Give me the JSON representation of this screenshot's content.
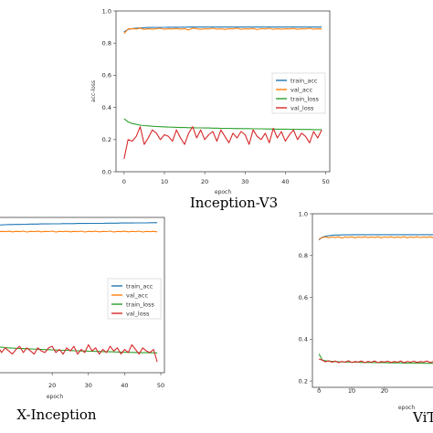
{
  "colors": {
    "train_acc": "#1f77b4",
    "val_acc": "#ff7f0e",
    "train_loss": "#2ca02c",
    "val_loss": "#d62728"
  },
  "chart_data": [
    {
      "type": "line",
      "caption": "Inception-V3",
      "xlabel": "epoch",
      "ylabel": "acc-loss",
      "xlim": [
        -2,
        51
      ],
      "ylim": [
        0,
        1
      ],
      "xticks": [
        0,
        10,
        20,
        30,
        40,
        50
      ],
      "yticks": [
        0.0,
        0.2,
        0.4,
        0.6,
        0.8,
        1.0
      ],
      "legend": "center-right",
      "series": [
        {
          "key": "train_acc",
          "name": "train_acc",
          "values": [
            0.87,
            0.885,
            0.89,
            0.893,
            0.895,
            0.896,
            0.897,
            0.897,
            0.898,
            0.898,
            0.898,
            0.899,
            0.899,
            0.899,
            0.899,
            0.899,
            0.9,
            0.9,
            0.9,
            0.9,
            0.9,
            0.9,
            0.9,
            0.9,
            0.9,
            0.9,
            0.9,
            0.9,
            0.9,
            0.9,
            0.9,
            0.9,
            0.9,
            0.9,
            0.9,
            0.9,
            0.9,
            0.9,
            0.9,
            0.9,
            0.9,
            0.9,
            0.9,
            0.9,
            0.9,
            0.9,
            0.9,
            0.9,
            0.9,
            0.9
          ]
        },
        {
          "key": "val_acc",
          "name": "val_acc",
          "values": [
            0.86,
            0.888,
            0.89,
            0.888,
            0.893,
            0.885,
            0.89,
            0.887,
            0.89,
            0.892,
            0.886,
            0.89,
            0.888,
            0.891,
            0.887,
            0.89,
            0.882,
            0.893,
            0.89,
            0.886,
            0.89,
            0.888,
            0.892,
            0.887,
            0.89,
            0.885,
            0.89,
            0.888,
            0.893,
            0.886,
            0.89,
            0.888,
            0.891,
            0.884,
            0.89,
            0.888,
            0.892,
            0.886,
            0.89,
            0.887,
            0.89,
            0.888,
            0.891,
            0.886,
            0.89,
            0.888,
            0.892,
            0.887,
            0.89,
            0.888
          ]
        },
        {
          "key": "train_loss",
          "name": "train_loss",
          "values": [
            0.33,
            0.31,
            0.3,
            0.295,
            0.29,
            0.287,
            0.285,
            0.283,
            0.281,
            0.28,
            0.279,
            0.278,
            0.277,
            0.276,
            0.275,
            0.275,
            0.274,
            0.274,
            0.273,
            0.273,
            0.272,
            0.272,
            0.271,
            0.271,
            0.27,
            0.27,
            0.27,
            0.269,
            0.269,
            0.268,
            0.268,
            0.268,
            0.267,
            0.267,
            0.267,
            0.266,
            0.266,
            0.266,
            0.265,
            0.265,
            0.265,
            0.264,
            0.264,
            0.264,
            0.263,
            0.263,
            0.263,
            0.262,
            0.262,
            0.262
          ]
        },
        {
          "key": "val_loss",
          "name": "val_loss",
          "values": [
            0.08,
            0.2,
            0.19,
            0.22,
            0.28,
            0.17,
            0.21,
            0.26,
            0.24,
            0.2,
            0.23,
            0.22,
            0.19,
            0.26,
            0.21,
            0.17,
            0.24,
            0.28,
            0.21,
            0.26,
            0.2,
            0.23,
            0.25,
            0.19,
            0.26,
            0.22,
            0.18,
            0.24,
            0.21,
            0.25,
            0.23,
            0.17,
            0.26,
            0.22,
            0.2,
            0.24,
            0.18,
            0.27,
            0.21,
            0.25,
            0.19,
            0.23,
            0.26,
            0.2,
            0.24,
            0.22,
            0.18,
            0.25,
            0.21,
            0.26
          ]
        }
      ]
    },
    {
      "type": "line",
      "caption": "X-Inception",
      "xlabel": "epoch",
      "ylabel": "",
      "xlim": [
        -2,
        51
      ],
      "ylim": [
        0,
        1
      ],
      "xticks": [
        20,
        30,
        40,
        50
      ],
      "yticks": [],
      "legend": "center-right",
      "series": [
        {
          "key": "train_acc",
          "name": "train_acc",
          "values": [
            0.93,
            0.94,
            0.945,
            0.948,
            0.95,
            0.951,
            0.952,
            0.953,
            0.954,
            0.954,
            0.955,
            0.955,
            0.956,
            0.956,
            0.957,
            0.957,
            0.957,
            0.958,
            0.958,
            0.958,
            0.959,
            0.959,
            0.959,
            0.96,
            0.96,
            0.96,
            0.96,
            0.961,
            0.961,
            0.961,
            0.961,
            0.962,
            0.962,
            0.962,
            0.962,
            0.963,
            0.963,
            0.963,
            0.963,
            0.964,
            0.964,
            0.964,
            0.964,
            0.965,
            0.965,
            0.965,
            0.965,
            0.966,
            0.966,
            0.966
          ]
        },
        {
          "key": "val_acc",
          "name": "val_acc",
          "values": [
            0.915,
            0.905,
            0.91,
            0.907,
            0.912,
            0.906,
            0.91,
            0.908,
            0.911,
            0.907,
            0.91,
            0.908,
            0.912,
            0.906,
            0.91,
            0.908,
            0.911,
            0.907,
            0.91,
            0.909,
            0.912,
            0.906,
            0.91,
            0.908,
            0.911,
            0.907,
            0.91,
            0.908,
            0.912,
            0.906,
            0.91,
            0.908,
            0.911,
            0.907,
            0.91,
            0.909,
            0.912,
            0.906,
            0.91,
            0.908,
            0.911,
            0.907,
            0.91,
            0.908,
            0.912,
            0.906,
            0.91,
            0.908,
            0.91,
            0.907
          ]
        },
        {
          "key": "train_loss",
          "name": "train_loss",
          "values": [
            0.18,
            0.177,
            0.174,
            0.171,
            0.168,
            0.166,
            0.164,
            0.162,
            0.16,
            0.158,
            0.157,
            0.156,
            0.155,
            0.154,
            0.153,
            0.152,
            0.151,
            0.15,
            0.149,
            0.148,
            0.147,
            0.146,
            0.145,
            0.144,
            0.144,
            0.143,
            0.142,
            0.141,
            0.14,
            0.14,
            0.139,
            0.138,
            0.137,
            0.137,
            0.136,
            0.135,
            0.135,
            0.134,
            0.133,
            0.133,
            0.132,
            0.131,
            0.131,
            0.13,
            0.13,
            0.129,
            0.129,
            0.128,
            0.128,
            0.127
          ]
        },
        {
          "key": "val_loss",
          "name": "val_loss",
          "values": [
            0.17,
            0.14,
            0.16,
            0.12,
            0.15,
            0.17,
            0.13,
            0.16,
            0.14,
            0.12,
            0.15,
            0.17,
            0.13,
            0.16,
            0.14,
            0.12,
            0.16,
            0.14,
            0.13,
            0.16,
            0.17,
            0.13,
            0.15,
            0.12,
            0.16,
            0.14,
            0.17,
            0.12,
            0.15,
            0.13,
            0.18,
            0.14,
            0.16,
            0.12,
            0.15,
            0.13,
            0.17,
            0.14,
            0.16,
            0.12,
            0.15,
            0.13,
            0.18,
            0.15,
            0.12,
            0.16,
            0.14,
            0.13,
            0.15,
            0.07
          ]
        }
      ]
    },
    {
      "type": "line",
      "caption": "ViT",
      "xlabel": "epoch",
      "ylabel": "",
      "xlim": [
        -2,
        51
      ],
      "ylim": [
        0.17,
        1.0
      ],
      "xticks": [
        0,
        10,
        20
      ],
      "yticks": [
        0.2,
        0.4,
        0.6,
        0.8,
        1.0
      ],
      "legend": "center-right",
      "series": [
        {
          "key": "train_acc",
          "name": "train_acc",
          "values": [
            0.875,
            0.888,
            0.892,
            0.895,
            0.897,
            0.898,
            0.898,
            0.899,
            0.899,
            0.899,
            0.9,
            0.9,
            0.9,
            0.9,
            0.9,
            0.9,
            0.9,
            0.9,
            0.9,
            0.9,
            0.9,
            0.9,
            0.9,
            0.9,
            0.9,
            0.9,
            0.9,
            0.9,
            0.9,
            0.9,
            0.9,
            0.9,
            0.9,
            0.9,
            0.9,
            0.9,
            0.9,
            0.9,
            0.9,
            0.9,
            0.9,
            0.9,
            0.9,
            0.9,
            0.9,
            0.9,
            0.9,
            0.9,
            0.9,
            0.9
          ]
        },
        {
          "key": "val_acc",
          "name": "val_acc",
          "values": [
            0.88,
            0.886,
            0.889,
            0.885,
            0.889,
            0.887,
            0.89,
            0.884,
            0.889,
            0.887,
            0.89,
            0.885,
            0.889,
            0.887,
            0.89,
            0.886,
            0.889,
            0.887,
            0.89,
            0.885,
            0.889,
            0.887,
            0.89,
            0.886,
            0.889,
            0.887,
            0.89,
            0.885,
            0.889,
            0.887,
            0.89,
            0.886,
            0.889,
            0.887,
            0.89,
            0.885,
            0.889,
            0.887,
            0.89,
            0.886,
            0.889,
            0.887,
            0.89,
            0.885,
            0.889,
            0.887,
            0.89,
            0.886,
            0.889,
            0.887
          ]
        },
        {
          "key": "train_loss",
          "name": "train_loss",
          "values": [
            0.33,
            0.3,
            0.297,
            0.295,
            0.294,
            0.293,
            0.292,
            0.292,
            0.291,
            0.291,
            0.29,
            0.29,
            0.29,
            0.289,
            0.289,
            0.289,
            0.289,
            0.288,
            0.288,
            0.288,
            0.288,
            0.287,
            0.287,
            0.287,
            0.287,
            0.287,
            0.286,
            0.286,
            0.286,
            0.286,
            0.286,
            0.286,
            0.285,
            0.285,
            0.285,
            0.285,
            0.285,
            0.285,
            0.285,
            0.284,
            0.284,
            0.284,
            0.284,
            0.284,
            0.284,
            0.284,
            0.283,
            0.283,
            0.283,
            0.283
          ]
        },
        {
          "key": "val_loss",
          "name": "val_loss",
          "values": [
            0.305,
            0.3,
            0.292,
            0.297,
            0.29,
            0.296,
            0.288,
            0.294,
            0.29,
            0.297,
            0.289,
            0.293,
            0.291,
            0.296,
            0.288,
            0.294,
            0.29,
            0.296,
            0.288,
            0.293,
            0.291,
            0.295,
            0.289,
            0.293,
            0.29,
            0.296,
            0.288,
            0.294,
            0.29,
            0.295,
            0.289,
            0.293,
            0.291,
            0.296,
            0.288,
            0.294,
            0.29,
            0.295,
            0.289,
            0.293,
            0.291,
            0.295,
            0.288,
            0.294,
            0.29,
            0.296,
            0.289,
            0.293,
            0.29,
            0.295
          ]
        }
      ]
    }
  ]
}
